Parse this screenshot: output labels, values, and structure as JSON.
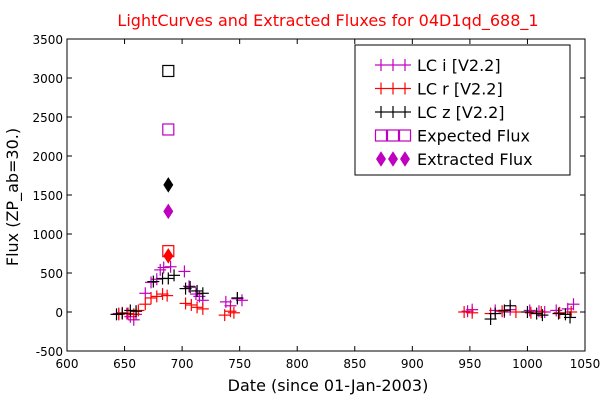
{
  "chart_data": {
    "type": "scatter",
    "title": "LightCurves and Extracted Fluxes for 04D1qd_688_1",
    "title_color": "#ff0000",
    "xlabel": "Date (since 01-Jan-2003)",
    "ylabel": "Flux (ZP_ab=30.)",
    "xlim": [
      600,
      1050
    ],
    "ylim": [
      -500,
      3500
    ],
    "x_ticks": [
      600,
      650,
      700,
      750,
      800,
      850,
      900,
      950,
      1000,
      1050
    ],
    "y_ticks": [
      -500,
      0,
      500,
      1000,
      1500,
      2000,
      2500,
      3000,
      3500
    ],
    "legend_position": "top-right",
    "series": [
      {
        "name": "LC i [V2.2]",
        "marker": "plus",
        "color": "#bf00bf",
        "points": [
          [
            645,
            -20
          ],
          [
            652,
            -20
          ],
          [
            655,
            -60
          ],
          [
            658,
            -100
          ],
          [
            660,
            -30
          ],
          [
            668,
            240
          ],
          [
            673,
            380
          ],
          [
            678,
            420
          ],
          [
            681,
            540
          ],
          [
            684,
            570
          ],
          [
            690,
            580
          ],
          [
            702,
            520
          ],
          [
            706,
            330
          ],
          [
            712,
            230
          ],
          [
            715,
            200
          ],
          [
            718,
            150
          ],
          [
            738,
            130
          ],
          [
            742,
            80
          ],
          [
            748,
            170
          ],
          [
            752,
            150
          ],
          [
            948,
            10
          ],
          [
            952,
            30
          ],
          [
            972,
            20
          ],
          [
            980,
            0
          ],
          [
            985,
            30
          ],
          [
            1002,
            20
          ],
          [
            1010,
            10
          ],
          [
            1015,
            0
          ],
          [
            1025,
            20
          ],
          [
            1035,
            40
          ],
          [
            1040,
            100
          ]
        ]
      },
      {
        "name": "LC r [V2.2]",
        "marker": "plus",
        "color": "#ff0000",
        "points": [
          [
            645,
            -30
          ],
          [
            648,
            -10
          ],
          [
            653,
            -20
          ],
          [
            658,
            -30
          ],
          [
            662,
            20
          ],
          [
            668,
            100
          ],
          [
            673,
            180
          ],
          [
            678,
            200
          ],
          [
            683,
            230
          ],
          [
            687,
            210
          ],
          [
            703,
            110
          ],
          [
            708,
            90
          ],
          [
            713,
            60
          ],
          [
            718,
            40
          ],
          [
            737,
            -40
          ],
          [
            742,
            10
          ],
          [
            745,
            -10
          ],
          [
            945,
            0
          ],
          [
            952,
            -10
          ],
          [
            968,
            -20
          ],
          [
            978,
            10
          ],
          [
            990,
            0
          ],
          [
            1003,
            -10
          ],
          [
            1012,
            0
          ],
          [
            1028,
            -10
          ],
          [
            1038,
            0
          ]
        ]
      },
      {
        "name": "LC z [V2.2]",
        "marker": "plus",
        "color": "#000000",
        "points": [
          [
            643,
            -30
          ],
          [
            648,
            -20
          ],
          [
            655,
            20
          ],
          [
            660,
            10
          ],
          [
            675,
            390
          ],
          [
            683,
            430
          ],
          [
            688,
            430
          ],
          [
            693,
            470
          ],
          [
            703,
            300
          ],
          [
            707,
            320
          ],
          [
            713,
            270
          ],
          [
            718,
            240
          ],
          [
            748,
            180
          ],
          [
            968,
            -90
          ],
          [
            972,
            -20
          ],
          [
            980,
            20
          ],
          [
            985,
            80
          ],
          [
            1000,
            0
          ],
          [
            1008,
            -20
          ],
          [
            1013,
            -40
          ],
          [
            1027,
            -20
          ],
          [
            1033,
            -30
          ],
          [
            1037,
            -70
          ]
        ]
      },
      {
        "name": "Expected Flux",
        "marker": "square",
        "points": [
          [
            688,
            3090,
            "#000000"
          ],
          [
            688,
            2340,
            "#bf00bf"
          ],
          [
            688,
            780,
            "#ff0000"
          ]
        ]
      },
      {
        "name": "Extracted Flux",
        "marker": "diamond",
        "points": [
          [
            688,
            1630,
            "#000000"
          ],
          [
            688,
            1290,
            "#bf00bf"
          ],
          [
            688,
            720,
            "#ff0000"
          ]
        ]
      }
    ],
    "legend": [
      {
        "label": "LC i [V2.2]",
        "marker": "plus",
        "color": "#bf00bf"
      },
      {
        "label": "LC r [V2.2]",
        "marker": "plus",
        "color": "#ff0000"
      },
      {
        "label": "LC z [V2.2]",
        "marker": "plus",
        "color": "#000000"
      },
      {
        "label": "Expected Flux",
        "marker": "square",
        "color": "#bf00bf"
      },
      {
        "label": "Extracted Flux",
        "marker": "diamond",
        "color": "#bf00bf"
      }
    ]
  }
}
